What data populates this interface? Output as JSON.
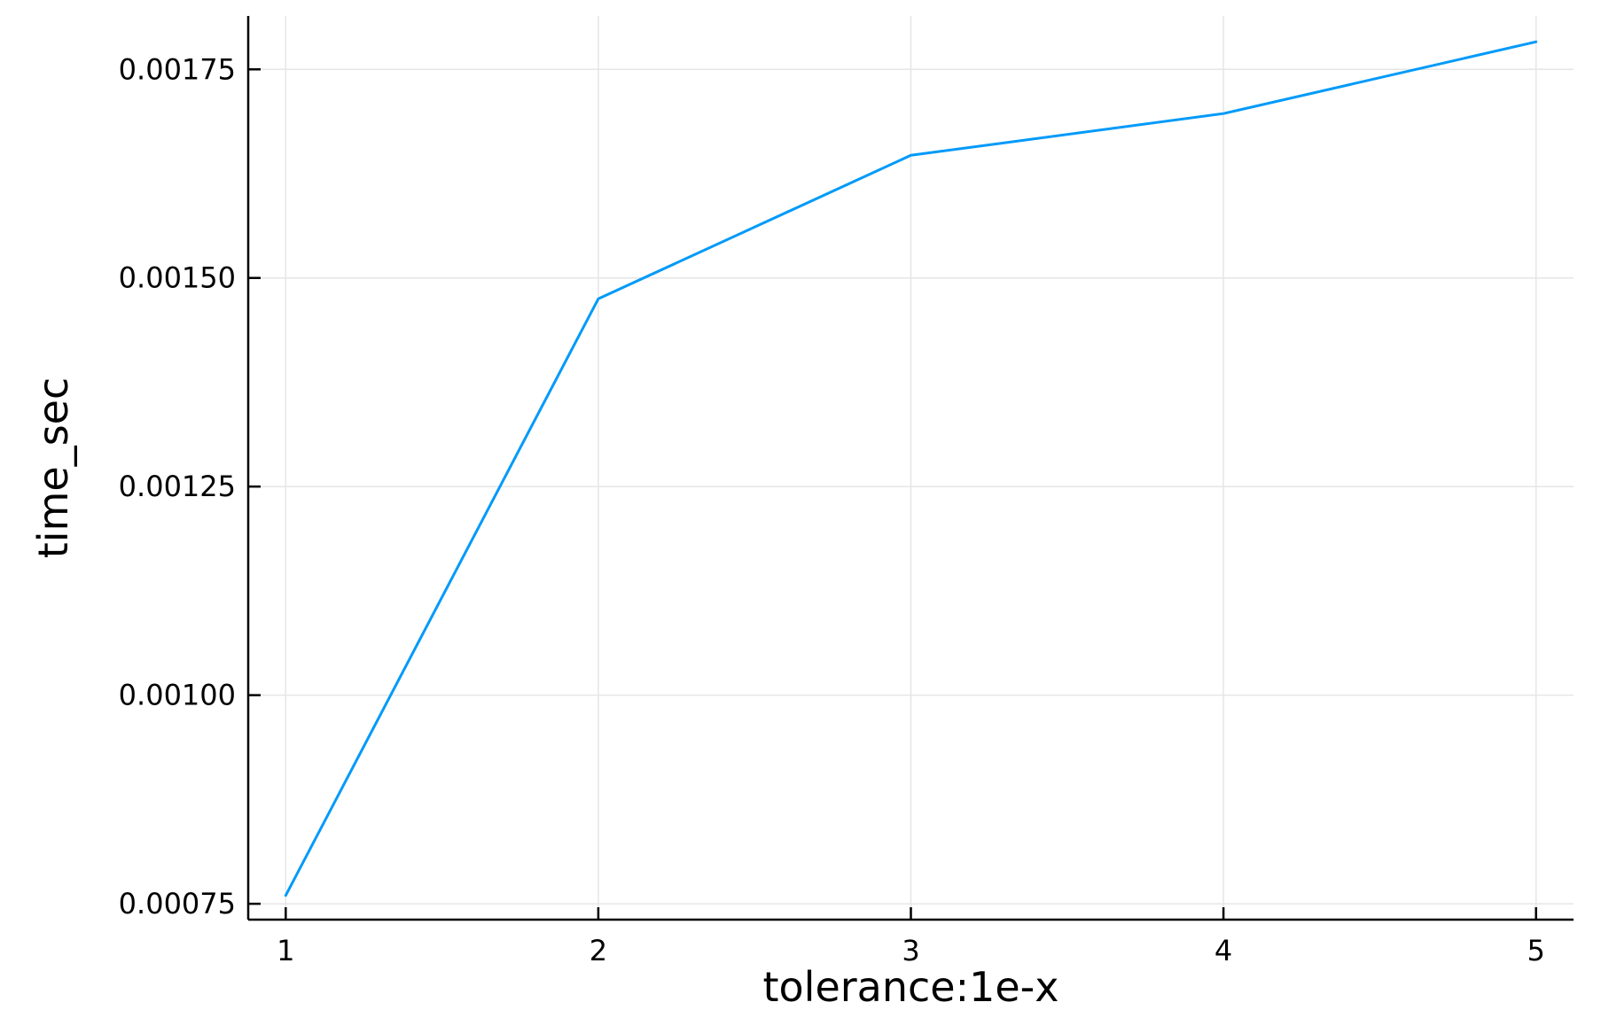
{
  "chart_data": {
    "type": "line",
    "title": "",
    "xlabel": "tolerance:1e-x",
    "ylabel": "time_sec",
    "x": [
      1,
      2,
      3,
      4,
      5
    ],
    "series": [
      {
        "values": [
          0.00076,
          0.001475,
          0.001647,
          0.001697,
          0.001783
        ],
        "color": "#009af9"
      }
    ],
    "xlim": [
      0.88,
      5.12
    ],
    "ylim": [
      0.000731,
      0.001814
    ],
    "xticks": [
      1,
      2,
      3,
      4,
      5
    ],
    "xtick_labels": [
      "1",
      "2",
      "3",
      "4",
      "5"
    ],
    "yticks": [
      0.00075,
      0.001,
      0.00125,
      0.0015,
      0.00175
    ],
    "ytick_labels": [
      "0.00075",
      "0.00100",
      "0.00125",
      "0.00150",
      "0.00175"
    ],
    "grid": true,
    "legend": "none",
    "colors": {
      "line": "#009af9",
      "grid": "#e6e6e6",
      "axis": "#000000"
    }
  }
}
